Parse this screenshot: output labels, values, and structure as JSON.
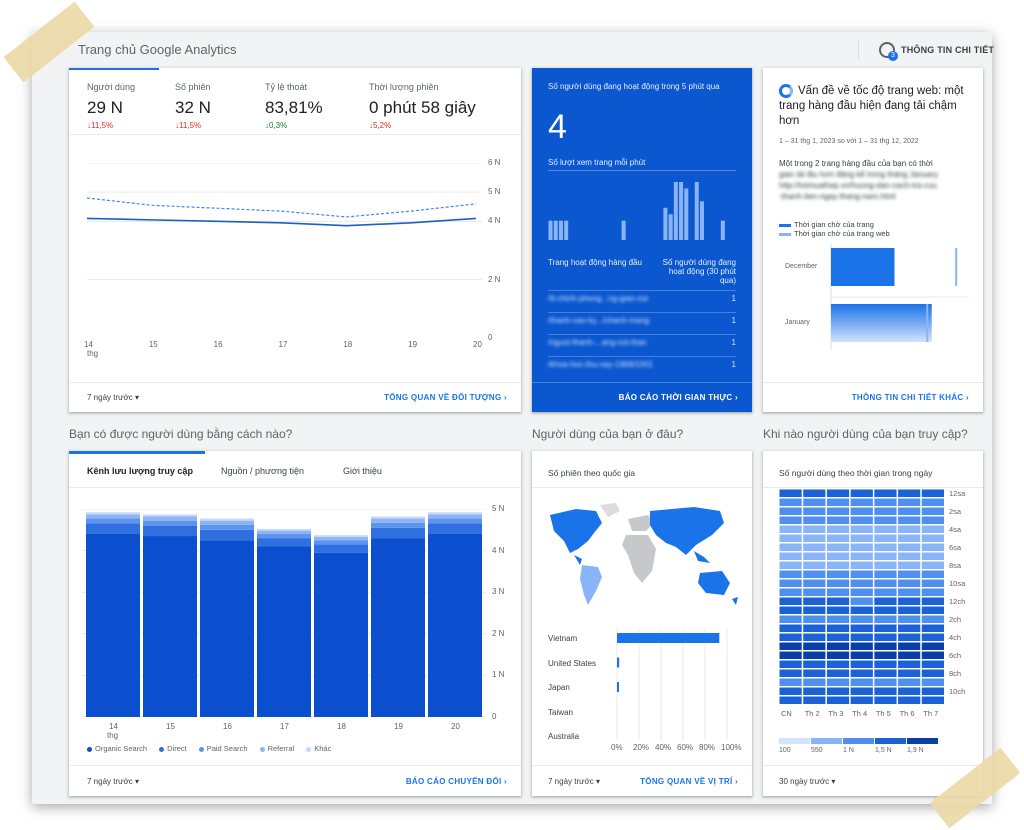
{
  "header": {
    "title": "Trang chủ Google Analytics",
    "insights_label": "THÔNG TIN CHI TIẾT",
    "insights_count": "3"
  },
  "audience": {
    "metrics": [
      {
        "label": "Người dùng",
        "value": "29 N",
        "delta": "↓11,5%"
      },
      {
        "label": "Số phiên",
        "value": "32 N",
        "delta": "↓11,5%"
      },
      {
        "label": "Tỷ lệ thoát",
        "value": "83,81%",
        "delta": "↓0,3%"
      },
      {
        "label": "Thời lượng phiên",
        "value": "0 phút 58 giây",
        "delta": "↓5,2%"
      }
    ],
    "y_ticks": [
      "6 N",
      "5 N",
      "4 N",
      "2 N",
      "0"
    ],
    "x_ticks": [
      "14",
      "15",
      "16",
      "17",
      "18",
      "19",
      "20"
    ],
    "x_month": "thg",
    "range_label": "7 ngày trước",
    "link": "TỔNG QUAN VỀ ĐỐI TƯỢNG"
  },
  "realtime": {
    "title": "Số người dùng đang hoạt động trong 5 phút qua",
    "value": "4",
    "per_minute_label": "Số lượt xem trang mỗi phút",
    "bars": [
      3,
      3,
      3,
      3,
      0,
      0,
      0,
      0,
      0,
      0,
      0,
      0,
      0,
      0,
      3,
      0,
      0,
      0,
      0,
      0,
      0,
      0,
      5,
      4,
      9,
      9,
      8,
      0,
      9,
      6,
      0,
      0,
      0,
      3,
      0,
      0
    ],
    "col_left": "Trang hoạt động hàng đầu",
    "col_right": "Số người dùng đang hoạt động (30 phút qua)",
    "rows": [
      {
        "page": "/tt-chinh-phong...ng-giao-nui",
        "value": "1"
      },
      {
        "page": "/thanh-cao-ky.../chanh-mang",
        "value": "1"
      },
      {
        "page": "/nguoi-thanh-...ang-noi-than",
        "value": "1"
      },
      {
        "page": "/khoa-hoc-thu-nay-1968/1001",
        "value": "1"
      }
    ],
    "link": "BÁO CÁO THỜI GIAN THỰC"
  },
  "insight": {
    "title": "Vấn đề về tốc độ trang web: một trang hàng đầu hiện đang tải chậm hơn",
    "date_range": "1 – 31 thg 1, 2023 so với 1 – 31 thg 12, 2022",
    "body": "Một trong 2 trang hàng đầu của bạn có thời",
    "body_blur_1": "gian tải lâu hơn đáng kể trong tháng January",
    "body_blur_2": "http://toimuathep.vn/huong-dan-cach-tra-cuu",
    "body_blur_3": "-thanh-tien-ngay-thang-nam.html",
    "legend": [
      "Thời gian chờ của trang",
      "Thời gian chờ của trang web"
    ],
    "rows": [
      {
        "label": "December",
        "page": 0.46,
        "site": 0.9
      },
      {
        "label": "January",
        "page": 0.73,
        "site": 0.69
      }
    ],
    "link": "THÔNG TIN CHI TIẾT KHÁC"
  },
  "acquisition": {
    "question": "Bạn có được người dùng bằng cách nào?",
    "tabs": [
      "Kênh lưu lượng truy cập",
      "Nguồn / phương tiện",
      "Giới thiệu"
    ],
    "y_ticks": [
      "5 N",
      "4 N",
      "3 N",
      "2 N",
      "1 N",
      "0"
    ],
    "x_ticks": [
      "14",
      "15",
      "16",
      "17",
      "18",
      "19",
      "20"
    ],
    "x_month": "thg",
    "legend": [
      "Organic Search",
      "Direct",
      "Paid Search",
      "Referral",
      "Khác"
    ],
    "range_label": "7 ngày trước",
    "link": "BÁO CÁO CHUYỂN ĐỔI"
  },
  "geo": {
    "question": "Người dùng của bạn ở đâu?",
    "subtitle": "Số phiên theo quốc gia",
    "countries": [
      {
        "name": "Vietnam",
        "share": 0.93
      },
      {
        "name": "United States",
        "share": 0.02
      },
      {
        "name": "Japan",
        "share": 0.01
      },
      {
        "name": "Taiwan",
        "share": 0
      },
      {
        "name": "Australia",
        "share": 0
      }
    ],
    "x_ticks": [
      "0%",
      "20%",
      "40%",
      "60%",
      "80%",
      "100%"
    ],
    "range_label": "7 ngày trước",
    "link": "TỔNG QUAN VỀ VỊ TRÍ"
  },
  "time": {
    "question": "Khi nào người dùng của bạn truy cập?",
    "subtitle": "Số người dùng theo thời gian trong ngày",
    "hours": [
      "12sa",
      "2sa",
      "4sa",
      "6sa",
      "8sa",
      "10sa",
      "12ch",
      "2ch",
      "4ch",
      "6ch",
      "8ch",
      "10ch"
    ],
    "days": [
      "CN",
      "Th 2",
      "Th 3",
      "Th 4",
      "Th 5",
      "Th 6",
      "Th 7"
    ],
    "scale": [
      "100",
      "550",
      "1 N",
      "1,5 N",
      "1,9 N"
    ],
    "range_label": "30 ngày trước"
  },
  "chart_data": [
    {
      "type": "line",
      "x": [
        "14",
        "15",
        "16",
        "17",
        "18",
        "19",
        "20"
      ],
      "series": [
        {
          "name": "Người dùng",
          "values": [
            4.1,
            4.05,
            4.0,
            3.95,
            3.85,
            3.95,
            4.1
          ]
        },
        {
          "values": [
            4.8,
            4.55,
            4.45,
            4.35,
            4.15,
            4.35,
            4.6
          ]
        }
      ],
      "ylim": [
        0,
        6
      ]
    },
    {
      "type": "bar",
      "categories": [
        "14",
        "15",
        "16",
        "17",
        "18",
        "19",
        "20"
      ],
      "series": [
        {
          "name": "Organic Search",
          "values": [
            4.4,
            4.35,
            4.25,
            4.1,
            3.95,
            4.3,
            4.4
          ]
        },
        {
          "name": "Direct",
          "values": [
            0.25,
            0.25,
            0.25,
            0.2,
            0.2,
            0.25,
            0.25
          ]
        },
        {
          "name": "Paid Search",
          "values": [
            0.12,
            0.12,
            0.12,
            0.1,
            0.1,
            0.12,
            0.12
          ]
        },
        {
          "name": "Referral",
          "values": [
            0.1,
            0.1,
            0.1,
            0.08,
            0.08,
            0.1,
            0.1
          ]
        },
        {
          "name": "Khác",
          "values": [
            0.05,
            0.05,
            0.05,
            0.04,
            0.04,
            0.05,
            0.05
          ]
        }
      ],
      "ylim": [
        0,
        5
      ]
    },
    {
      "type": "bar",
      "categories": [
        "Vietnam",
        "United States",
        "Japan",
        "Taiwan",
        "Australia"
      ],
      "values": [
        93,
        2,
        1,
        0,
        0
      ],
      "xlim": [
        0,
        100
      ]
    },
    {
      "type": "heatmap",
      "x": [
        "CN",
        "Th 2",
        "Th 3",
        "Th 4",
        "Th 5",
        "Th 6",
        "Th 7"
      ],
      "y": [
        "12sa",
        "2sa",
        "4sa",
        "6sa",
        "8sa",
        "10sa",
        "12ch",
        "2ch",
        "4ch",
        "6ch",
        "8ch",
        "10ch"
      ],
      "levels": [
        [
          3,
          3,
          3,
          3,
          3,
          3,
          3
        ],
        [
          2,
          2,
          2,
          2,
          2,
          2,
          2
        ],
        [
          2,
          2,
          2,
          2,
          2,
          2,
          2
        ],
        [
          2,
          2,
          2,
          2,
          2,
          2,
          2
        ],
        [
          1,
          1,
          1,
          1,
          1,
          1,
          1
        ],
        [
          1,
          1,
          1,
          1,
          1,
          1,
          1
        ],
        [
          1,
          1,
          1,
          1,
          1,
          1,
          1
        ],
        [
          1,
          1,
          1,
          1,
          1,
          1,
          1
        ],
        [
          1,
          1,
          1,
          1,
          1,
          1,
          1
        ],
        [
          2,
          2,
          2,
          2,
          2,
          2,
          2
        ],
        [
          2,
          2,
          2,
          2,
          2,
          2,
          2
        ],
        [
          2,
          2,
          2,
          2,
          2,
          2,
          2
        ],
        [
          3,
          3,
          3,
          2,
          3,
          3,
          3
        ],
        [
          3,
          3,
          3,
          3,
          3,
          3,
          3
        ],
        [
          2,
          2,
          2,
          2,
          2,
          2,
          2
        ],
        [
          3,
          3,
          3,
          3,
          3,
          3,
          3
        ],
        [
          3,
          3,
          3,
          3,
          3,
          3,
          3
        ],
        [
          4,
          4,
          4,
          4,
          4,
          4,
          4
        ],
        [
          4,
          4,
          4,
          4,
          4,
          4,
          4
        ],
        [
          3,
          3,
          3,
          3,
          3,
          3,
          3
        ],
        [
          3,
          3,
          3,
          3,
          3,
          3,
          3
        ],
        [
          2,
          2,
          2,
          2,
          2,
          2,
          2
        ],
        [
          3,
          3,
          3,
          3,
          3,
          3,
          3
        ],
        [
          3,
          3,
          3,
          3,
          3,
          3,
          3
        ]
      ]
    }
  ]
}
